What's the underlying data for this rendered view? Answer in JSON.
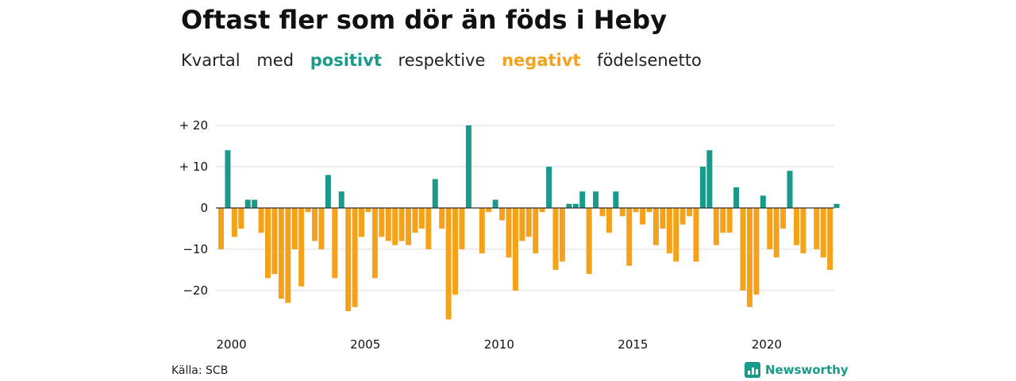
{
  "title": "Oftast fler som dör än föds i Heby",
  "subtitle": {
    "w1": "Kvartal",
    "w2": "med",
    "positive": "positivt",
    "w3": "respektive",
    "negative": "negativt",
    "w4": "födelsenetto"
  },
  "colors": {
    "positive": "#1a9a8a",
    "negative": "#f5a21b",
    "grid": "#dddddd",
    "baseline": "#333333"
  },
  "source": "Källa: SCB",
  "brand": {
    "name": "Newsworthy",
    "icon": "newsworthy-logo-icon"
  },
  "chart_data": {
    "type": "bar",
    "x_start": "2000 Q1",
    "frequency": "quarterly",
    "x_ticks": [
      "2000",
      "2005",
      "2010",
      "2015",
      "2020"
    ],
    "y_ticks": [
      20,
      10,
      0,
      -10,
      -20
    ],
    "y_tick_labels": [
      "+ 20",
      "+ 10",
      "0",
      "−10",
      "−20"
    ],
    "ylim": [
      -28,
      22
    ],
    "grid": true,
    "values": [
      -10,
      14,
      -7,
      -5,
      2,
      2,
      -6,
      -17,
      -16,
      -22,
      -23,
      -10,
      -19,
      -1,
      -8,
      -10,
      8,
      -17,
      4,
      -25,
      -24,
      -7,
      -1,
      -17,
      -7,
      -8,
      -9,
      -8,
      -9,
      -6,
      -5,
      -10,
      7,
      -5,
      -27,
      -21,
      -10,
      20,
      0,
      -11,
      -1,
      2,
      -3,
      -12,
      -20,
      -8,
      -7,
      -11,
      -1,
      10,
      -15,
      -13,
      1,
      1,
      4,
      -16,
      4,
      -2,
      -6,
      4,
      -2,
      -14,
      -1,
      -4,
      -1,
      -9,
      -5,
      -11,
      -13,
      -4,
      -2,
      -13,
      10,
      14,
      -9,
      -6,
      -6,
      5,
      -20,
      -24,
      -21,
      3,
      -10,
      -12,
      -5,
      9,
      -9,
      -11,
      0,
      -10,
      -12,
      -15,
      1
    ]
  }
}
